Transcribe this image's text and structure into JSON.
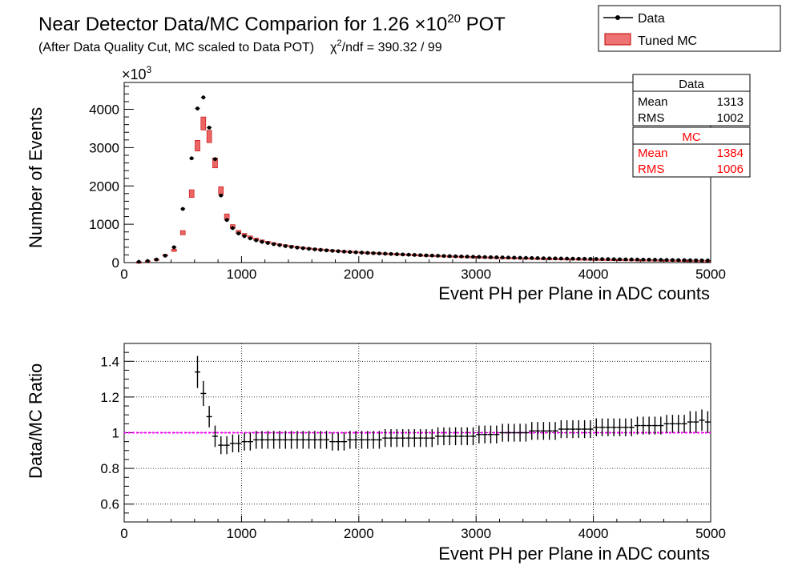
{
  "title": {
    "prefix": "Near Detector Data/MC Comparion for 1.26 ",
    "times": "×10",
    "exponent": "20",
    "suffix": " POT"
  },
  "subtitle": {
    "text": "(After Data Quality Cut, MC scaled to Data POT)",
    "chi2_symbol": "χ",
    "chi2_exp": "2",
    "chi2_rest": "/ndf = 390.32 / 99"
  },
  "legend": {
    "position": "top-right",
    "entries": [
      {
        "label": "Data",
        "color": "#000000"
      },
      {
        "label": "Tuned MC",
        "color": "#e00000"
      }
    ]
  },
  "stats": {
    "data": {
      "title": "Data",
      "color": "#000000",
      "mean_label": "Mean",
      "mean": "1313",
      "rms_label": "RMS",
      "rms": "1002"
    },
    "mc": {
      "title": "MC",
      "color": "#ff0000",
      "mean_label": "Mean",
      "mean": "1384",
      "rms_label": "RMS",
      "rms": "1006"
    }
  },
  "chart_data": [
    {
      "type": "scatter",
      "xlabel": "Event PH per Plane in ADC counts",
      "ylabel": "Number of Events",
      "y_multiplier": "×10",
      "y_multiplier_exp": "3",
      "xlim": [
        0,
        5000
      ],
      "ylim": [
        0,
        4700
      ],
      "xticks": [
        0,
        1000,
        2000,
        3000,
        4000,
        5000
      ],
      "yticks": [
        0,
        1000,
        2000,
        3000,
        4000
      ],
      "grid": false,
      "series": [
        {
          "name": "Data",
          "x": [
            125,
            200,
            275,
            350,
            425,
            500,
            575,
            625,
            675,
            725,
            775,
            825,
            875,
            925,
            975,
            1025,
            1075,
            1125,
            1175,
            1225,
            1275,
            1325,
            1375,
            1425,
            1475,
            1525,
            1575,
            1625,
            1675,
            1725,
            1775,
            1825,
            1875,
            1925,
            1975,
            2025,
            2075,
            2125,
            2175,
            2225,
            2275,
            2325,
            2375,
            2425,
            2475,
            2525,
            2575,
            2625,
            2675,
            2725,
            2775,
            2825,
            2875,
            2925,
            2975,
            3025,
            3075,
            3125,
            3175,
            3225,
            3275,
            3325,
            3375,
            3425,
            3475,
            3525,
            3575,
            3625,
            3675,
            3725,
            3775,
            3825,
            3875,
            3925,
            3975,
            4025,
            4075,
            4125,
            4175,
            4225,
            4275,
            4325,
            4375,
            4425,
            4475,
            4525,
            4575,
            4625,
            4675,
            4725,
            4775,
            4825,
            4875,
            4925,
            4975
          ],
          "values": [
            20,
            40,
            80,
            180,
            400,
            1400,
            2720,
            4020,
            4310,
            3520,
            2700,
            1750,
            1110,
            900,
            760,
            690,
            630,
            580,
            540,
            510,
            480,
            455,
            430,
            410,
            390,
            375,
            360,
            345,
            330,
            318,
            306,
            296,
            286,
            276,
            268,
            260,
            252,
            245,
            238,
            232,
            225,
            218,
            212,
            206,
            200,
            194,
            188,
            183,
            178,
            173,
            168,
            164,
            160,
            156,
            152,
            148,
            144,
            140,
            137,
            134,
            131,
            128,
            125,
            122,
            119,
            116,
            113,
            110,
            108,
            106,
            104,
            102,
            100,
            98,
            96,
            94,
            92,
            90,
            88,
            86,
            84,
            82,
            80,
            78,
            76,
            74,
            72,
            70,
            68,
            66,
            64,
            62,
            60,
            58,
            56
          ]
        },
        {
          "name": "Tuned MC",
          "x": [
            125,
            200,
            275,
            350,
            425,
            500,
            575,
            625,
            675,
            725,
            775,
            825,
            875,
            925,
            975,
            1025,
            1075,
            1125,
            1175,
            1225,
            1275,
            1325,
            1375,
            1425,
            1475,
            1525,
            1575,
            1625,
            1675,
            1725,
            1775,
            1825,
            1875,
            1925,
            1975,
            2025,
            2075,
            2125,
            2175,
            2225,
            2275,
            2325,
            2375,
            2425,
            2475,
            2525,
            2575,
            2625,
            2675,
            2725,
            2775,
            2825,
            2875,
            2925,
            2975,
            3025,
            3075,
            3125,
            3175,
            3225,
            3275,
            3325,
            3375,
            3425,
            3475,
            3525,
            3575,
            3625,
            3675,
            3725,
            3775,
            3825,
            3875,
            3925,
            3975,
            4025,
            4075,
            4125,
            4175,
            4225,
            4275,
            4325,
            4375,
            4425,
            4475,
            4525,
            4575,
            4625,
            4675,
            4725,
            4775,
            4825,
            4875,
            4925,
            4975
          ],
          "values": [
            20,
            40,
            85,
            190,
            320,
            780,
            1800,
            3050,
            3630,
            3290,
            2600,
            1880,
            1200,
            940,
            800,
            725,
            665,
            610,
            565,
            530,
            500,
            470,
            445,
            425,
            405,
            388,
            372,
            357,
            343,
            330,
            318,
            307,
            297,
            287,
            279,
            270,
            262,
            255,
            248,
            241,
            234,
            227,
            220,
            213,
            206,
            199,
            193,
            187,
            182,
            177,
            172,
            167,
            162,
            157,
            153,
            149,
            145,
            141,
            137,
            133,
            130,
            127,
            124,
            121,
            118,
            115,
            112,
            109,
            106,
            104,
            102,
            100,
            98,
            96,
            94,
            92,
            90,
            88,
            86,
            84,
            82,
            80,
            78,
            76,
            74,
            72,
            70,
            68,
            66,
            64,
            62,
            60,
            58,
            56,
            54
          ],
          "band_halfwidth": [
            5,
            8,
            12,
            20,
            30,
            55,
            100,
            140,
            170,
            160,
            130,
            100,
            70,
            50,
            40,
            35,
            30,
            28,
            26,
            24,
            22,
            21,
            20,
            19,
            18,
            17,
            16,
            16,
            15,
            15,
            14,
            14,
            13,
            13,
            13,
            12,
            12,
            12,
            11,
            11,
            11,
            10,
            10,
            10,
            10,
            9,
            9,
            9,
            9,
            9,
            8,
            8,
            8,
            8,
            8,
            8,
            7,
            7,
            7,
            7,
            7,
            7,
            7,
            7,
            6,
            6,
            6,
            6,
            6,
            6,
            6,
            6,
            6,
            6,
            6,
            5,
            5,
            5,
            5,
            5,
            5,
            5,
            5,
            5,
            5,
            5,
            5,
            5,
            5,
            5,
            5,
            5,
            5,
            5,
            5
          ]
        }
      ]
    },
    {
      "type": "scatter",
      "xlabel": "Event PH per Plane in ADC counts",
      "ylabel": "Data/MC Ratio",
      "xlim": [
        0,
        5000
      ],
      "ylim": [
        0.5,
        1.5
      ],
      "xticks": [
        0,
        1000,
        2000,
        3000,
        4000,
        5000
      ],
      "yticks": [
        0.6,
        0.8,
        1,
        1.2,
        1.4
      ],
      "grid": true,
      "reference_line": {
        "y": 1.0,
        "color": "#ff00ff"
      },
      "series": [
        {
          "name": "Data/MC",
          "x": [
            625,
            675,
            725,
            775,
            825,
            875,
            925,
            975,
            1025,
            1075,
            1125,
            1175,
            1225,
            1275,
            1325,
            1375,
            1425,
            1475,
            1525,
            1575,
            1625,
            1675,
            1725,
            1775,
            1825,
            1875,
            1925,
            1975,
            2025,
            2075,
            2125,
            2175,
            2225,
            2275,
            2325,
            2375,
            2425,
            2475,
            2525,
            2575,
            2625,
            2675,
            2725,
            2775,
            2825,
            2875,
            2925,
            2975,
            3025,
            3075,
            3125,
            3175,
            3225,
            3275,
            3325,
            3375,
            3425,
            3475,
            3525,
            3575,
            3625,
            3675,
            3725,
            3775,
            3825,
            3875,
            3925,
            3975,
            4025,
            4075,
            4125,
            4175,
            4225,
            4275,
            4325,
            4375,
            4425,
            4475,
            4525,
            4575,
            4625,
            4675,
            4725,
            4775,
            4825,
            4875,
            4925,
            4975
          ],
          "values": [
            1.34,
            1.22,
            1.09,
            0.98,
            0.93,
            0.93,
            0.94,
            0.94,
            0.95,
            0.95,
            0.96,
            0.96,
            0.96,
            0.96,
            0.96,
            0.96,
            0.96,
            0.96,
            0.96,
            0.96,
            0.96,
            0.96,
            0.96,
            0.95,
            0.95,
            0.95,
            0.96,
            0.96,
            0.96,
            0.96,
            0.96,
            0.96,
            0.97,
            0.97,
            0.97,
            0.97,
            0.97,
            0.97,
            0.97,
            0.97,
            0.97,
            0.98,
            0.98,
            0.98,
            0.98,
            0.98,
            0.98,
            0.98,
            0.99,
            0.99,
            0.99,
            0.99,
            1.0,
            1.0,
            1.0,
            1.0,
            1.0,
            1.01,
            1.01,
            1.01,
            1.01,
            1.01,
            1.02,
            1.02,
            1.02,
            1.02,
            1.02,
            1.02,
            1.03,
            1.03,
            1.03,
            1.03,
            1.03,
            1.03,
            1.03,
            1.04,
            1.04,
            1.04,
            1.04,
            1.04,
            1.05,
            1.05,
            1.05,
            1.05,
            1.06,
            1.06,
            1.07,
            1.06
          ],
          "errors": [
            0.09,
            0.07,
            0.06,
            0.06,
            0.05,
            0.05,
            0.05,
            0.05,
            0.05,
            0.05,
            0.05,
            0.05,
            0.05,
            0.05,
            0.05,
            0.05,
            0.05,
            0.05,
            0.05,
            0.05,
            0.05,
            0.05,
            0.05,
            0.05,
            0.05,
            0.05,
            0.05,
            0.05,
            0.05,
            0.05,
            0.05,
            0.05,
            0.05,
            0.05,
            0.05,
            0.05,
            0.05,
            0.05,
            0.05,
            0.05,
            0.05,
            0.05,
            0.05,
            0.05,
            0.05,
            0.05,
            0.05,
            0.05,
            0.05,
            0.05,
            0.05,
            0.05,
            0.05,
            0.05,
            0.05,
            0.05,
            0.05,
            0.05,
            0.05,
            0.05,
            0.05,
            0.05,
            0.05,
            0.05,
            0.05,
            0.05,
            0.05,
            0.05,
            0.05,
            0.05,
            0.05,
            0.05,
            0.05,
            0.05,
            0.05,
            0.05,
            0.05,
            0.05,
            0.05,
            0.05,
            0.05,
            0.05,
            0.05,
            0.05,
            0.06,
            0.06,
            0.06,
            0.06
          ]
        }
      ]
    }
  ]
}
